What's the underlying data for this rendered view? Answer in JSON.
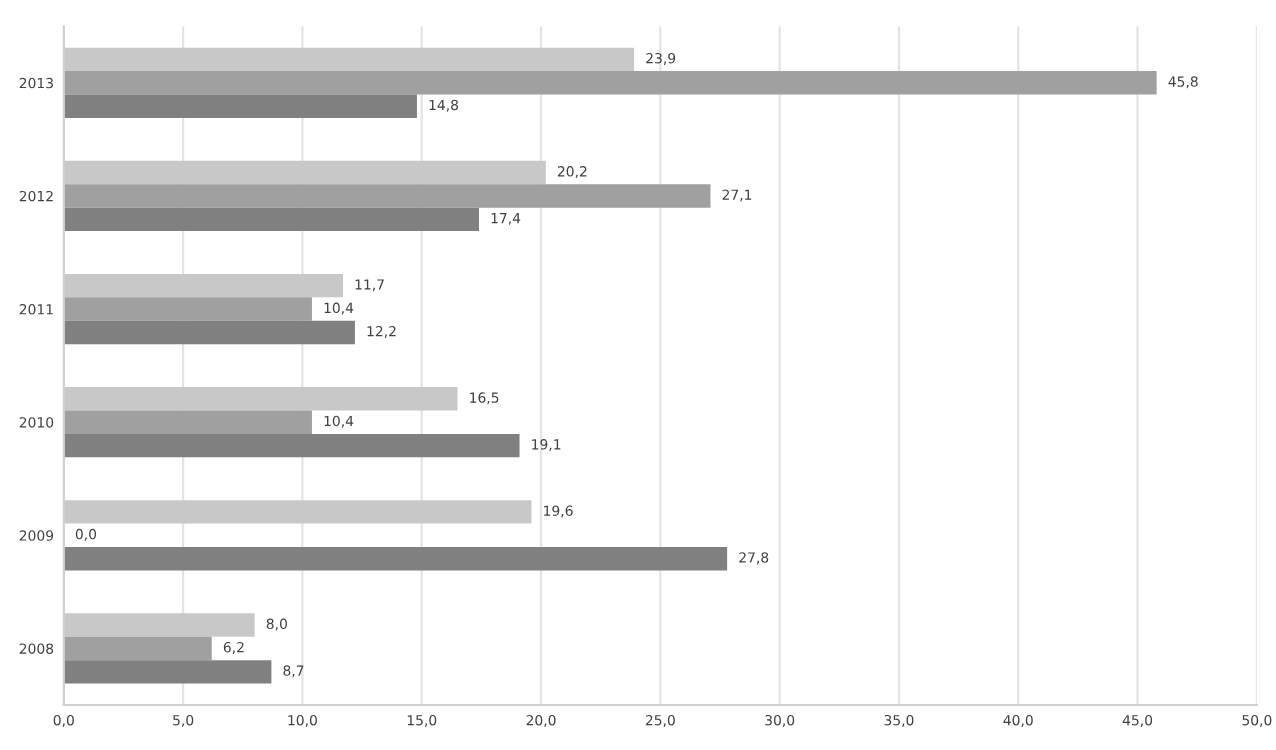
{
  "chart_data": {
    "type": "bar",
    "orientation": "horizontal",
    "categories": [
      "2013",
      "2012",
      "2011",
      "2010",
      "2009",
      "2008"
    ],
    "series": [
      {
        "color": "#c8c8c8",
        "values": [
          23.9,
          20.2,
          11.7,
          16.5,
          19.6,
          8.0
        ],
        "value_labels": [
          "23,9",
          "20,2",
          "11,7",
          "16,5",
          "19,6",
          "8,0"
        ]
      },
      {
        "color": "#a0a0a0",
        "values": [
          45.8,
          27.1,
          10.4,
          10.4,
          0.0,
          6.2
        ],
        "value_labels": [
          "45,8",
          "27,1",
          "10,4",
          "10,4",
          "0,0",
          "6,2"
        ]
      },
      {
        "color": "#808080",
        "values": [
          14.8,
          17.4,
          12.2,
          19.1,
          27.8,
          8.7
        ],
        "value_labels": [
          "14,8",
          "17,4",
          "12,2",
          "19,1",
          "27,8",
          "8,7"
        ]
      }
    ],
    "xlim": [
      0,
      50
    ],
    "xticks": [
      {
        "value": 0,
        "label": "0,0"
      },
      {
        "value": 5,
        "label": "5,0"
      },
      {
        "value": 10,
        "label": "10,0"
      },
      {
        "value": 15,
        "label": "15,0"
      },
      {
        "value": 20,
        "label": "20,0"
      },
      {
        "value": 25,
        "label": "25,0"
      },
      {
        "value": 30,
        "label": "30,0"
      },
      {
        "value": 35,
        "label": "35,0"
      },
      {
        "value": 40,
        "label": "40,0"
      },
      {
        "value": 45,
        "label": "45,0"
      },
      {
        "value": 50,
        "label": "50,0"
      }
    ],
    "grid": "x"
  }
}
